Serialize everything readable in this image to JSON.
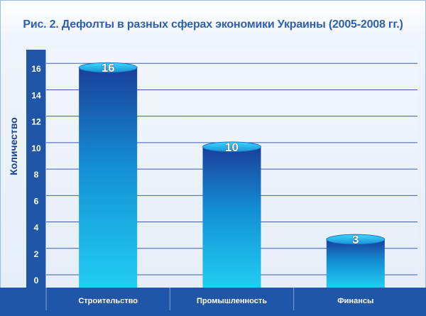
{
  "title": "Рис. 2. Дефолты в разных сферах экономики Украины (2005-2008 гг.)",
  "colors": {
    "title": "#2f5fae",
    "axis_band": "#1f56a8",
    "bar_top": "#1a3f9a",
    "bar_bottom": "#1ec8f0",
    "grid": "#3a5fa8",
    "ylabel": "#1b3f8f"
  },
  "chart_data": {
    "type": "bar",
    "title": "Рис. 2. Дефолты в разных сферах экономики Украины (2005-2008 гг.)",
    "xlabel": "",
    "ylabel": "Количество",
    "ylim": [
      0,
      18
    ],
    "yticks": [
      0,
      2,
      4,
      6,
      8,
      10,
      12,
      14,
      16
    ],
    "grid": true,
    "categories": [
      "Строительство",
      "Промышленность",
      "Финансы"
    ],
    "values": [
      16,
      10,
      3
    ],
    "data_labels": [
      "16",
      "10",
      "3"
    ]
  }
}
